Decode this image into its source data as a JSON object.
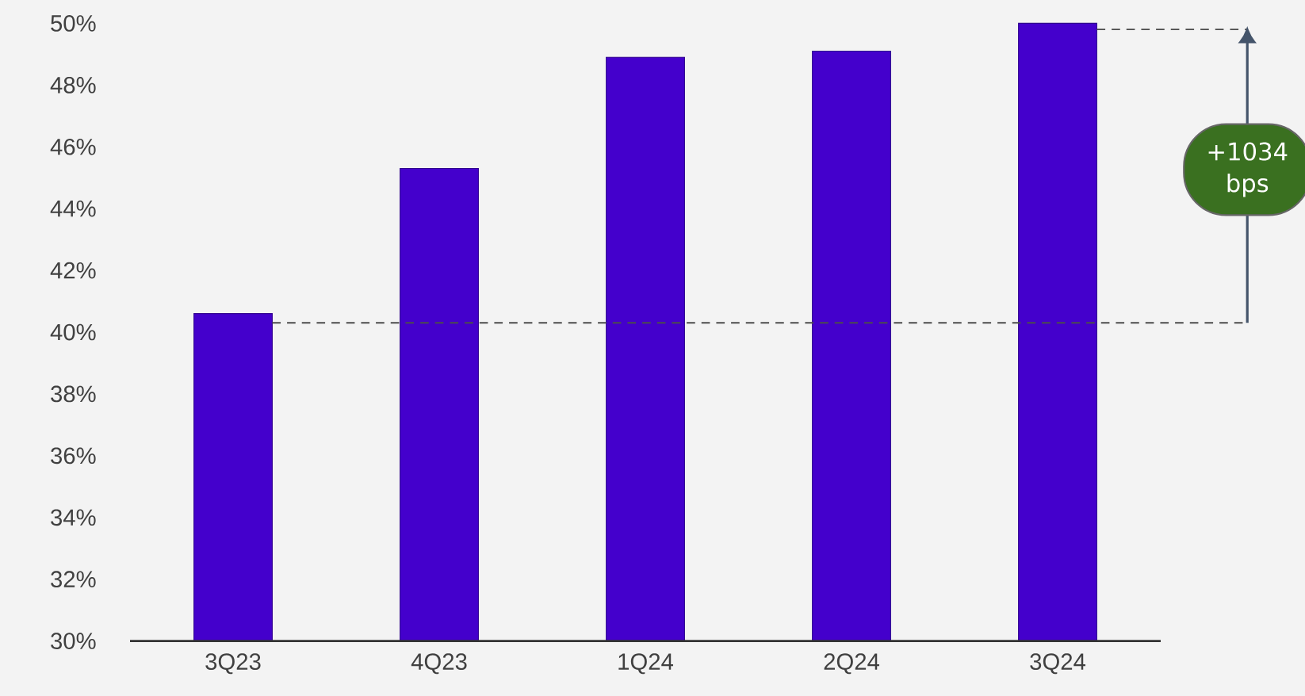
{
  "chart_data": {
    "type": "bar",
    "categories": [
      "3Q23",
      "4Q23",
      "1Q24",
      "2Q24",
      "3Q24"
    ],
    "values": [
      40.6,
      45.3,
      48.9,
      49.1,
      50.0
    ],
    "color": "#4400cc",
    "ylim": [
      30,
      50
    ],
    "yticks": [
      {
        "value": 30,
        "label": "30%"
      },
      {
        "value": 32,
        "label": "32%"
      },
      {
        "value": 34,
        "label": "34%"
      },
      {
        "value": 36,
        "label": "36%"
      },
      {
        "value": 38,
        "label": "38%"
      },
      {
        "value": 40,
        "label": "40%"
      },
      {
        "value": 42,
        "label": "42%"
      },
      {
        "value": 44,
        "label": "44%"
      },
      {
        "value": 46,
        "label": "46%"
      },
      {
        "value": 48,
        "label": "48%"
      },
      {
        "value": 50,
        "label": "50%"
      }
    ],
    "grid": false,
    "ref_lines": [
      {
        "axis": "y",
        "value": 40.3,
        "line_style": "dashed"
      },
      {
        "axis": "y",
        "value": 49.8,
        "line_style": "dashed"
      }
    ],
    "annotations": [
      "+1034 bps"
    ]
  }
}
